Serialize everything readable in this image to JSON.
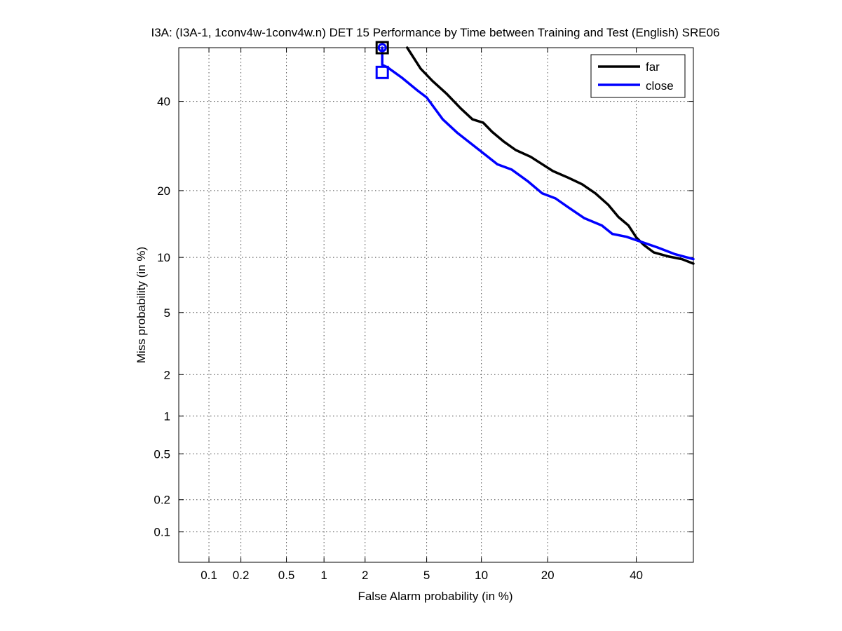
{
  "chart_data": {
    "type": "line",
    "title": "I3A: (I3A-1, 1conv4w-1conv4w.n) DET 15 Performance by Time between Training and Test (English) SRE06",
    "xlabel": "False Alarm probability (in %)",
    "ylabel": "Miss probability (in %)",
    "scale": "normal-deviate (probit) on both axes",
    "xlim": [
      0.05,
      55
    ],
    "ylim": [
      0.05,
      54
    ],
    "x_ticks": [
      0.1,
      0.2,
      0.5,
      1,
      2,
      5,
      10,
      20,
      40
    ],
    "x_tick_labels": [
      "0.1",
      "0.2",
      "0.5",
      "1",
      "2",
      "5",
      "10",
      "20",
      "40"
    ],
    "y_ticks": [
      0.1,
      0.2,
      0.5,
      1,
      2,
      5,
      10,
      20,
      40
    ],
    "y_tick_labels": [
      "0.1",
      "0.2",
      "0.5",
      "1",
      "2",
      "5",
      "10",
      "20",
      "40"
    ],
    "grid": true,
    "legend_position": "top-right",
    "series": [
      {
        "name": "far",
        "color": "#000000",
        "points": [
          [
            3.8,
            54
          ],
          [
            4.6,
            48.5
          ],
          [
            5.4,
            45.3
          ],
          [
            6.5,
            42.0
          ],
          [
            7.8,
            38.2
          ],
          [
            9.0,
            35.5
          ],
          [
            10.2,
            34.7
          ],
          [
            11.3,
            32.5
          ],
          [
            12.8,
            30.3
          ],
          [
            14.6,
            28.3
          ],
          [
            17.0,
            26.8
          ],
          [
            19.3,
            25.0
          ],
          [
            21.0,
            23.8
          ],
          [
            24.0,
            22.5
          ],
          [
            27.0,
            21.2
          ],
          [
            30.0,
            19.5
          ],
          [
            33.0,
            17.5
          ],
          [
            35.5,
            15.5
          ],
          [
            38.0,
            14.2
          ],
          [
            40.0,
            12.5
          ],
          [
            42.0,
            11.5
          ],
          [
            44.5,
            10.6
          ],
          [
            48.5,
            10.1
          ],
          [
            52.0,
            9.8
          ],
          [
            55.0,
            9.3
          ]
        ]
      },
      {
        "name": "close",
        "color": "#0000ff",
        "points": [
          [
            2.62,
            54
          ],
          [
            2.62,
            49.5
          ],
          [
            2.85,
            48.8
          ],
          [
            3.5,
            46.2
          ],
          [
            4.4,
            42.8
          ],
          [
            5.0,
            41.0
          ],
          [
            6.2,
            35.5
          ],
          [
            7.5,
            32.2
          ],
          [
            9.0,
            29.5
          ],
          [
            10.5,
            27.2
          ],
          [
            12.0,
            25.2
          ],
          [
            14.0,
            24.1
          ],
          [
            16.5,
            21.8
          ],
          [
            19.0,
            19.5
          ],
          [
            21.5,
            18.6
          ],
          [
            24.0,
            17.1
          ],
          [
            27.5,
            15.3
          ],
          [
            31.5,
            14.2
          ],
          [
            34.0,
            13.0
          ],
          [
            37.5,
            12.6
          ],
          [
            42.0,
            11.8
          ],
          [
            45.5,
            11.2
          ],
          [
            50.0,
            10.4
          ],
          [
            55.0,
            9.8
          ]
        ]
      }
    ],
    "markers": [
      {
        "series": "far",
        "shape": "square",
        "x": 2.62,
        "y": 54
      },
      {
        "series": "close",
        "shape": "square",
        "x": 2.62,
        "y": 47.5
      },
      {
        "series": "close",
        "shape": "circle",
        "x": 2.62,
        "y": 54
      }
    ]
  }
}
